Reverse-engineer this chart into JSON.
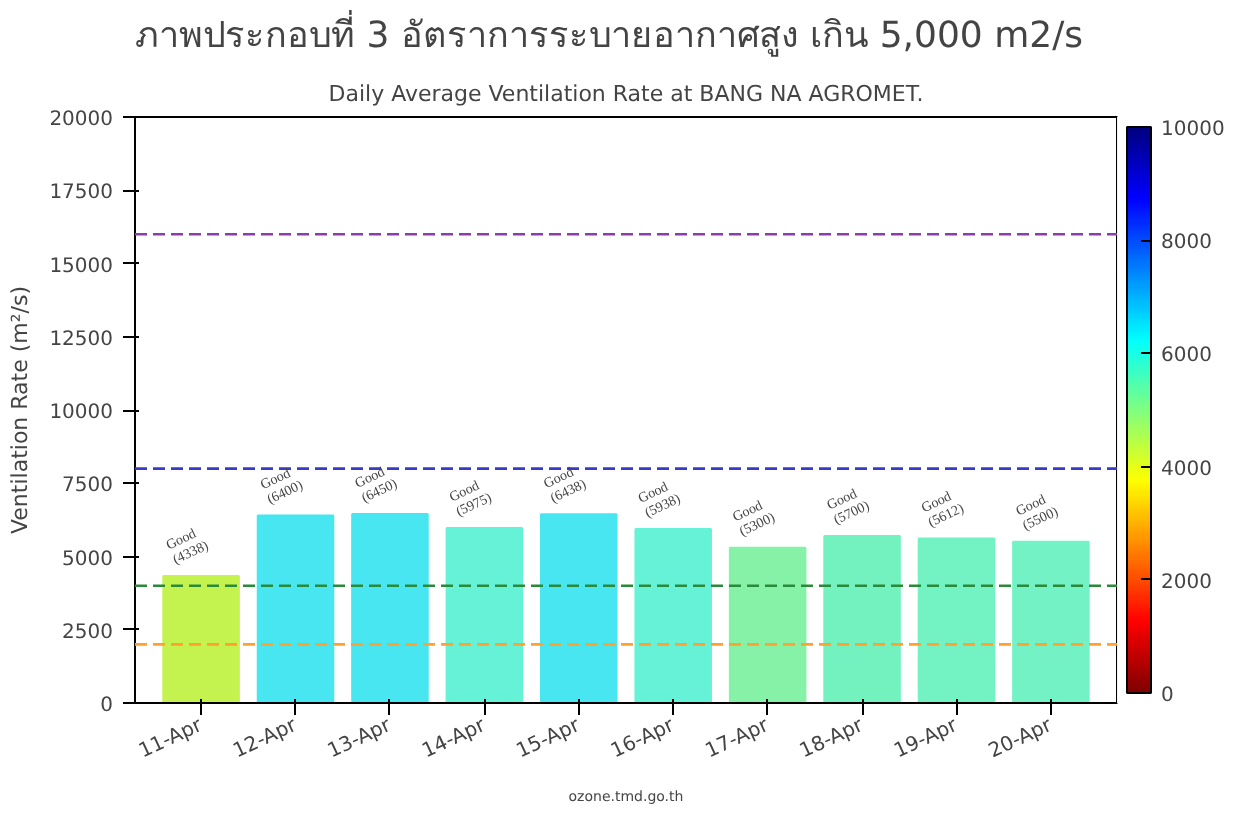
{
  "chart_data": {
    "type": "bar",
    "title": "ภาพประกอบที่ 3  อัตราการระบายอากาศสูง เกิน 5,000 m2/s",
    "subtitle": "Daily Average Ventilation Rate at BANG NA AGROMET.",
    "ylabel": "Ventilation Rate (m²/s)",
    "categories": [
      "11-Apr",
      "12-Apr",
      "13-Apr",
      "14-Apr",
      "15-Apr",
      "16-Apr",
      "17-Apr",
      "18-Apr",
      "19-Apr",
      "20-Apr"
    ],
    "values": [
      4338,
      6400,
      6450,
      5975,
      6438,
      5938,
      5300,
      5700,
      5612,
      5500
    ],
    "colors": [
      "#c4f24f",
      "#47e6f0",
      "#47e6f0",
      "#66f2d6",
      "#47e6f0",
      "#66f2d6",
      "#85f2a8",
      "#73f2bf",
      "#73f2c4",
      "#73f2c6"
    ],
    "value_labels": [
      "Good\n(4338)",
      "Good\n(6400)",
      "Good\n(6450)",
      "Good\n(5975)",
      "Good\n(6438)",
      "Good\n(5938)",
      "Good\n(5300)",
      "Good\n(5700)",
      "Good\n(5612)",
      "Good\n(5500)"
    ],
    "ylim": [
      0,
      20000
    ],
    "yticks": [
      0,
      2500,
      5000,
      7500,
      10000,
      12500,
      15000,
      17500,
      20000
    ],
    "ref_lines": [
      {
        "axis": "y",
        "value": 16000,
        "color": "#8a3fa8",
        "line_style": "dashed"
      },
      {
        "axis": "y",
        "value": 8000,
        "color": "#3a3ac8",
        "line_style": "dashed"
      },
      {
        "axis": "y",
        "value": 4000,
        "color": "#2a8a3a",
        "line_style": "dashed"
      },
      {
        "axis": "y",
        "value": 2000,
        "color": "#ffa030",
        "line_style": "dashed"
      }
    ],
    "clim": [
      0,
      10000
    ],
    "cticks": [
      0,
      2000,
      4000,
      6000,
      8000,
      10000
    ],
    "grid": false,
    "annotations": [
      "ozone.tmd.go.th"
    ]
  }
}
